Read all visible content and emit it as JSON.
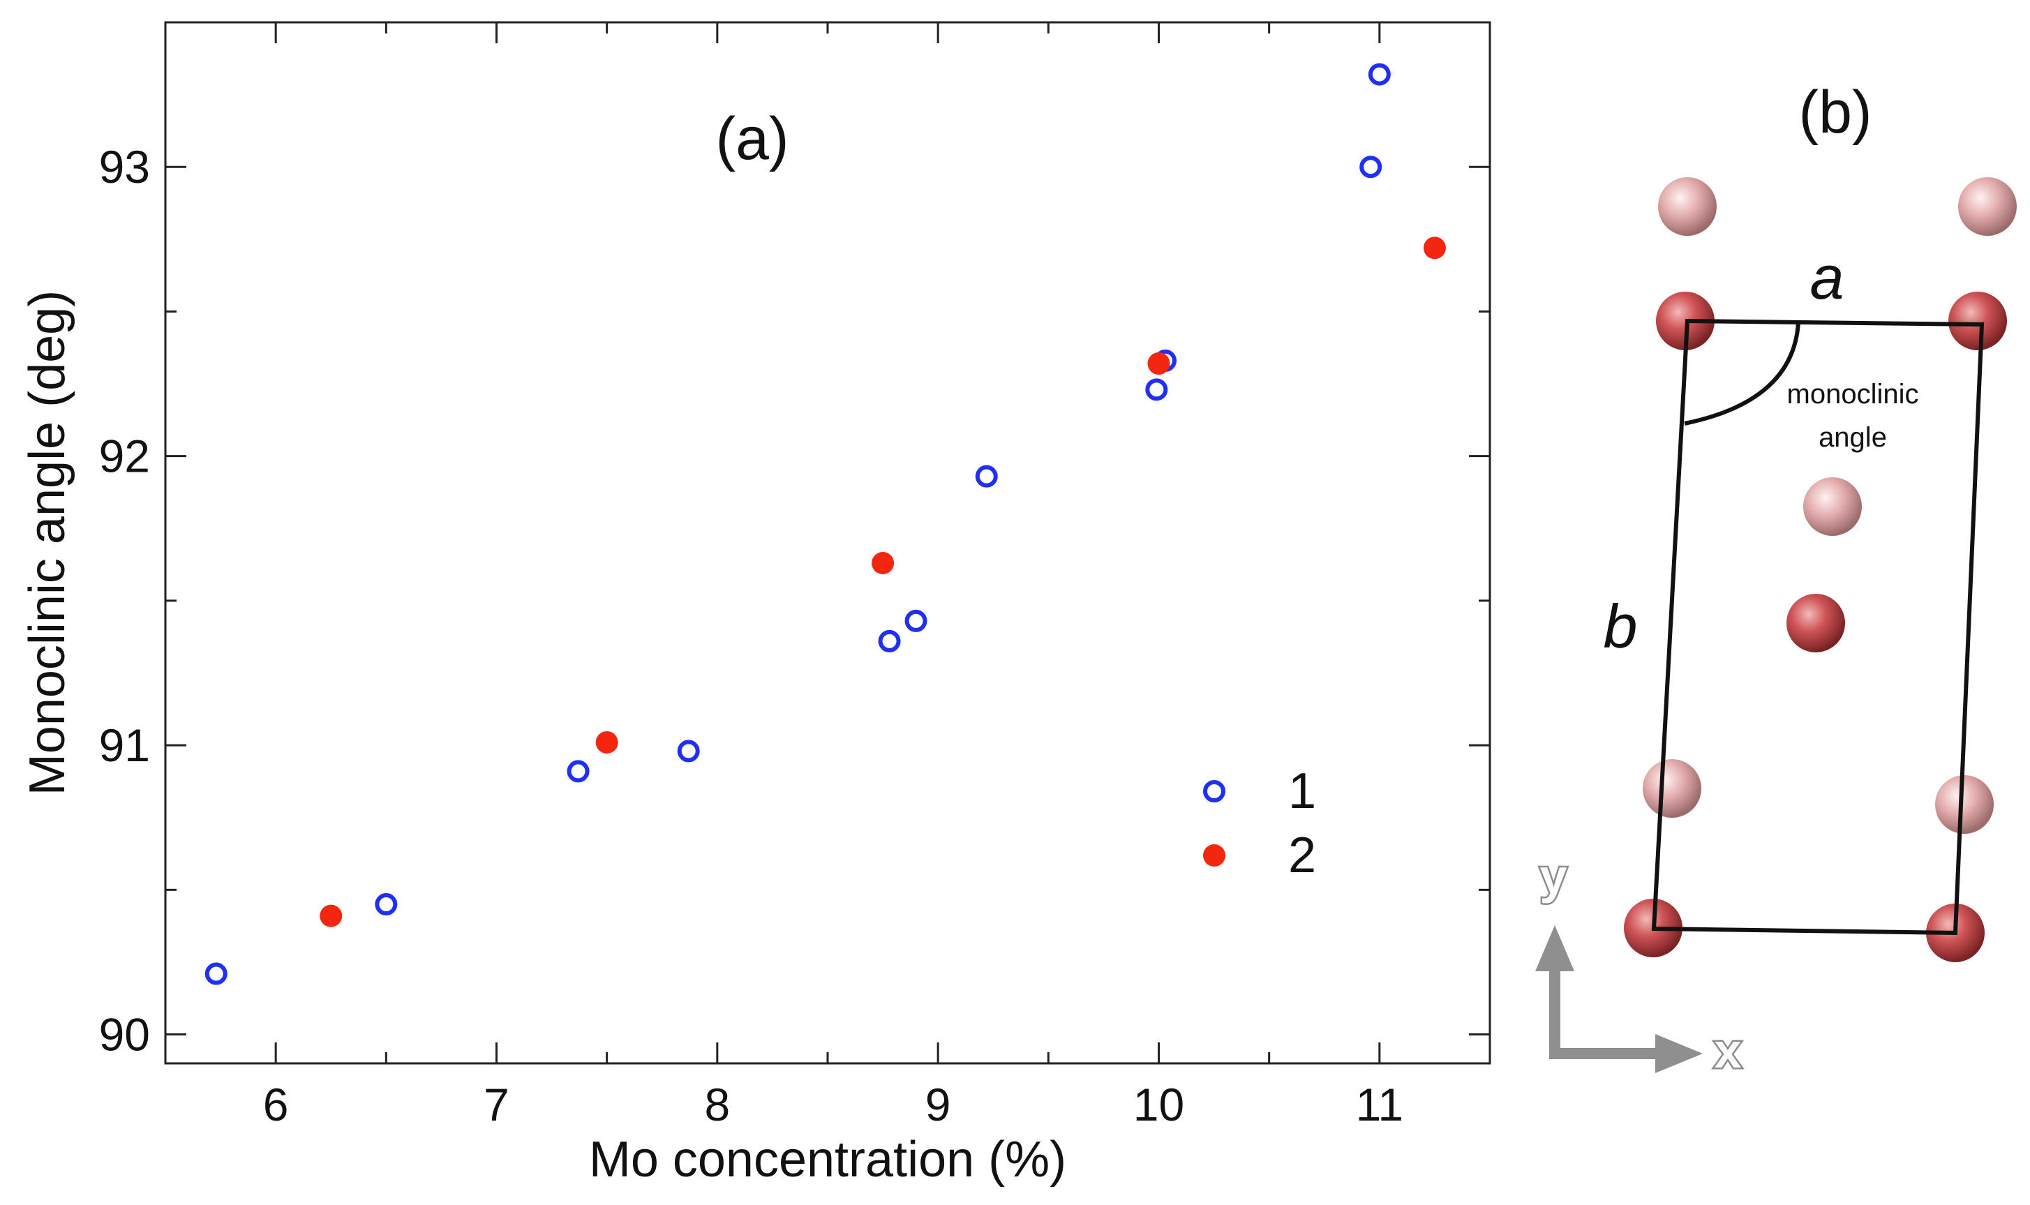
{
  "chart_data": {
    "type": "scatter",
    "title": "",
    "panel_label": "(a)",
    "xlabel": "Mo concentration (%)",
    "ylabel": "Monoclinic angle (deg)",
    "xlim": [
      5.5,
      11.5
    ],
    "ylim": [
      89.9,
      93.5
    ],
    "xticks": [
      6,
      7,
      8,
      9,
      10,
      11
    ],
    "yticks": [
      90,
      91,
      92,
      93
    ],
    "xtick_labels": [
      "6",
      "7",
      "8",
      "9",
      "10",
      "11"
    ],
    "ytick_labels": [
      "90",
      "91",
      "92",
      "93"
    ],
    "grid": false,
    "legend_position": "lower-right",
    "series": [
      {
        "name": "1",
        "marker": "open-circle",
        "color": "#1f2ff5",
        "points": [
          {
            "x": 5.73,
            "y": 90.21
          },
          {
            "x": 6.5,
            "y": 90.45
          },
          {
            "x": 7.37,
            "y": 90.91
          },
          {
            "x": 7.87,
            "y": 90.98
          },
          {
            "x": 8.78,
            "y": 91.36
          },
          {
            "x": 8.9,
            "y": 91.43
          },
          {
            "x": 9.22,
            "y": 91.93
          },
          {
            "x": 9.99,
            "y": 92.23
          },
          {
            "x": 10.03,
            "y": 92.33
          },
          {
            "x": 10.96,
            "y": 93.0
          },
          {
            "x": 11.0,
            "y": 93.32
          }
        ]
      },
      {
        "name": "2",
        "marker": "filled-circle",
        "color": "#f5260f",
        "points": [
          {
            "x": 6.25,
            "y": 90.41
          },
          {
            "x": 7.5,
            "y": 91.01
          },
          {
            "x": 8.75,
            "y": 91.63
          },
          {
            "x": 10.0,
            "y": 92.32
          },
          {
            "x": 11.25,
            "y": 92.72
          }
        ]
      }
    ]
  },
  "structure": {
    "panel_label": "(b)",
    "lattice_a": "a",
    "lattice_b": "b",
    "angle_caption_line1": "monoclinic",
    "angle_caption_line2": "angle",
    "axis_y": "y",
    "axis_x": "x",
    "atom_dark_color": "#c9484b",
    "atom_light_color": "#e3a8a8"
  }
}
